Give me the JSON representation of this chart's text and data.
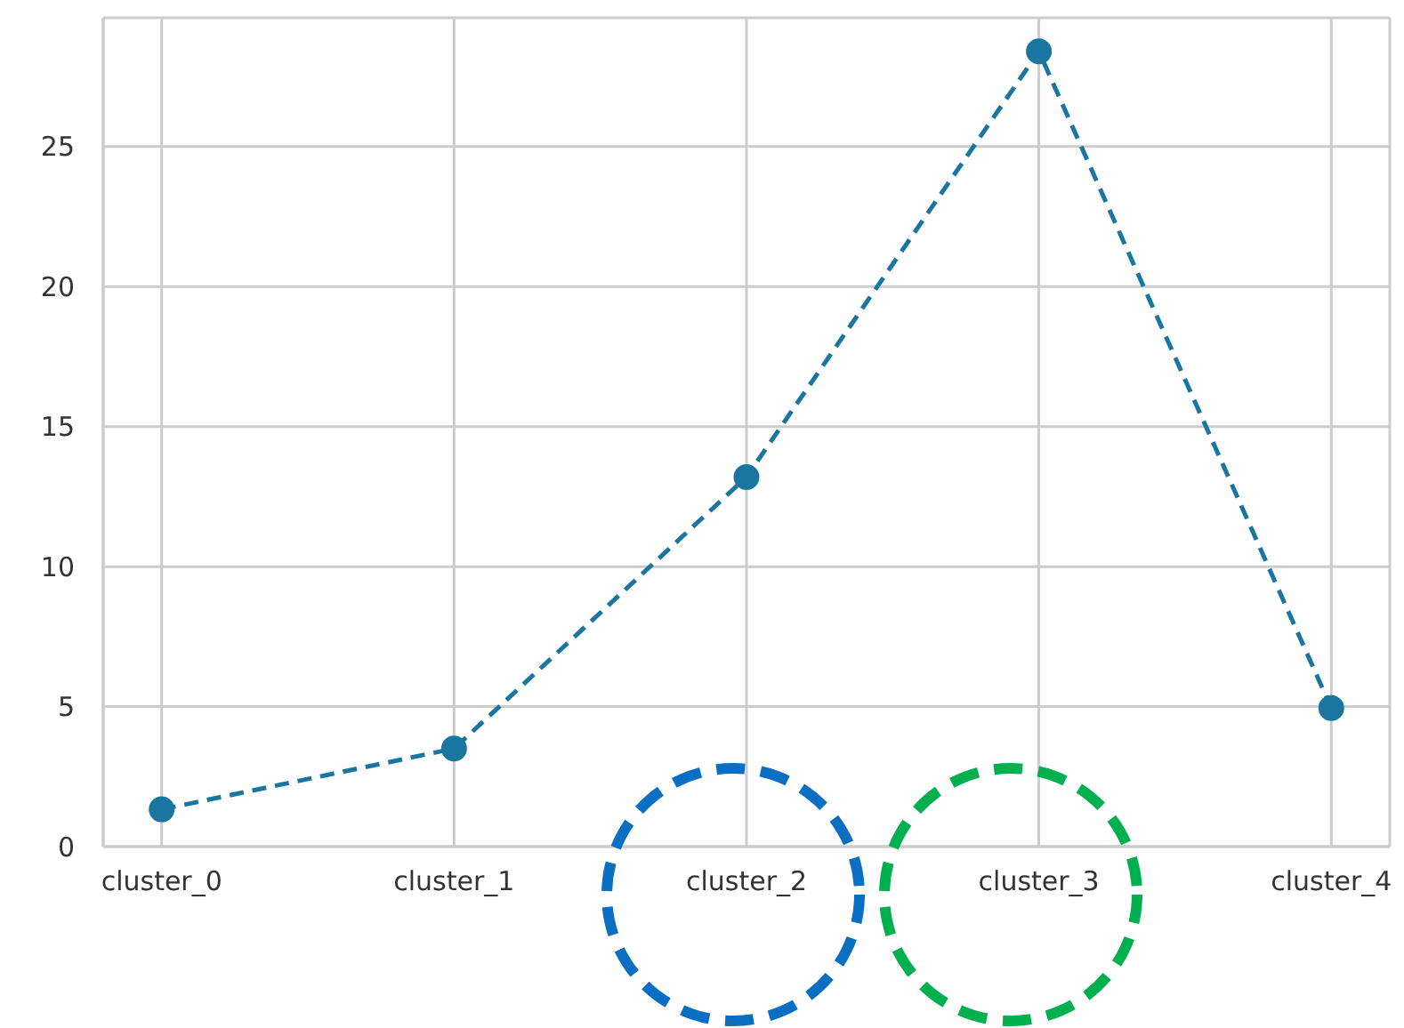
{
  "chart_data": {
    "type": "line",
    "categories": [
      "cluster_0",
      "cluster_1",
      "cluster_2",
      "cluster_3",
      "cluster_4"
    ],
    "series": [
      {
        "color": "#1a76a0",
        "values": [
          1.33,
          3.5,
          13.2,
          28.4,
          4.95
        ]
      }
    ],
    "ylim": [
      0,
      29.6
    ],
    "yticks": [
      0,
      5,
      10,
      15,
      20,
      25
    ],
    "grid": true,
    "marker": "circle",
    "line_style": "dashed"
  }
}
